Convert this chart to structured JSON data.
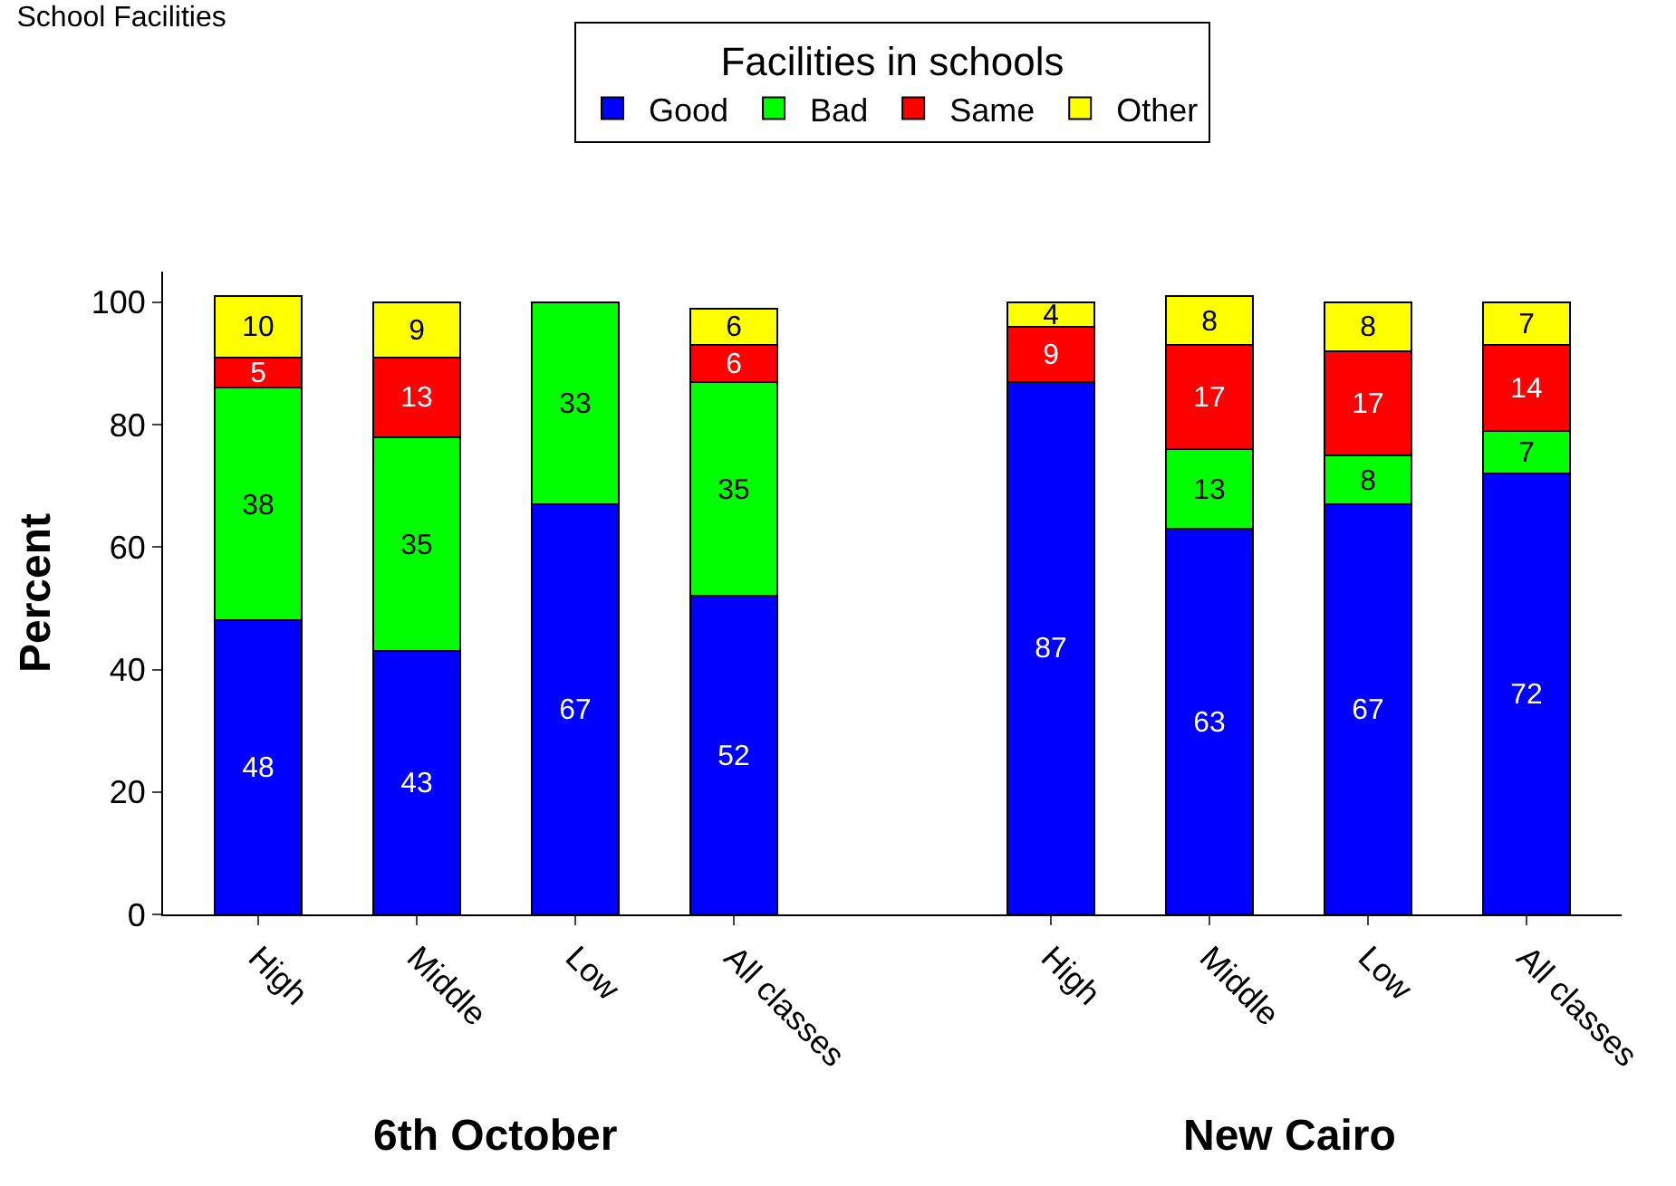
{
  "chart_data": {
    "type": "bar",
    "stacked": true,
    "title": "School Facilities",
    "ylabel": "Percent",
    "legend_title": "Facilities in schools",
    "legend": "top",
    "categories": [
      "High",
      "Middle",
      "Low",
      "All classes",
      null,
      "High",
      "Middle",
      "Low",
      "All classes"
    ],
    "series": [
      {
        "name": "Good",
        "color": "#0000ff",
        "values": [
          48,
          43,
          67,
          52,
          null,
          87,
          63,
          67,
          72
        ],
        "value_labels": [
          "48",
          "43",
          "67",
          "52",
          null,
          "87",
          "63",
          "67",
          "72"
        ]
      },
      {
        "name": "Bad",
        "color": "#00ff00",
        "values": [
          38,
          35,
          33,
          35,
          null,
          null,
          13,
          8,
          7
        ],
        "value_labels": [
          "38",
          "35",
          "33",
          "35",
          null,
          null,
          "13",
          "8",
          "7"
        ]
      },
      {
        "name": "Same",
        "color": "#ff0000",
        "values": [
          5,
          13,
          null,
          6,
          null,
          9,
          17,
          17,
          14
        ],
        "value_labels": [
          "5",
          "13",
          null,
          "6",
          null,
          "9",
          "17",
          "17",
          "14"
        ]
      },
      {
        "name": "Other",
        "color": "#ffff00",
        "values": [
          10,
          9,
          null,
          6,
          null,
          4,
          8,
          8,
          7
        ],
        "value_labels": [
          "10",
          "9",
          null,
          "6",
          null,
          "4",
          "8",
          "8",
          "7"
        ]
      }
    ],
    "ylim": [
      0,
      105
    ],
    "yticks": [
      0,
      20,
      40,
      60,
      80,
      100
    ],
    "annotations": [
      "6th October",
      "New Cairo"
    ]
  }
}
